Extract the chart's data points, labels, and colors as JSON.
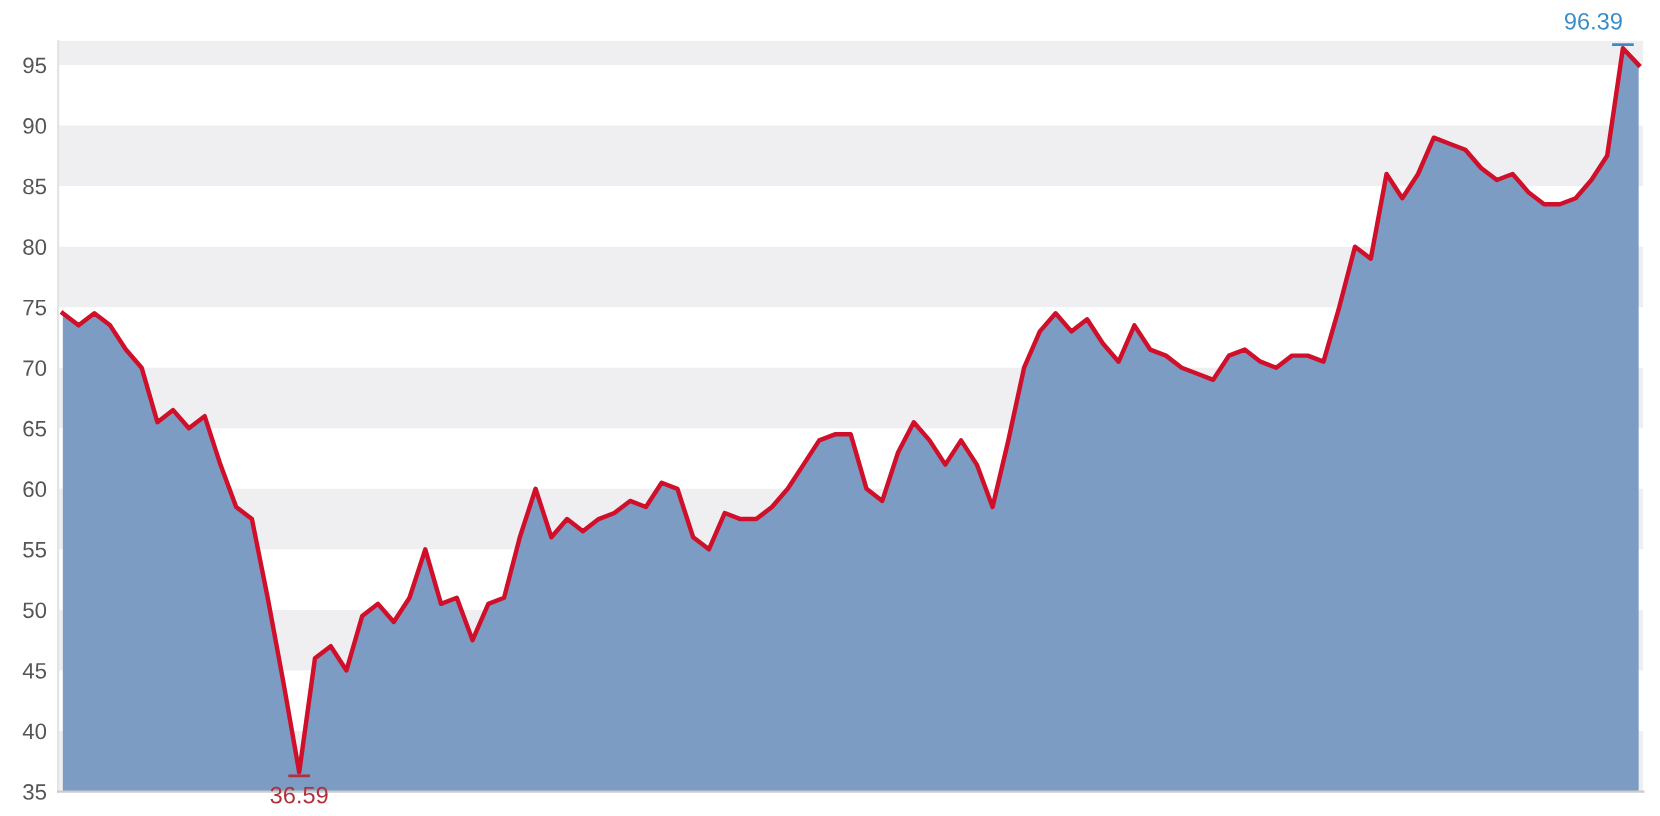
{
  "chart_data": {
    "type": "area",
    "categories": [
      null,
      null,
      null,
      null,
      null,
      null,
      null,
      null,
      null,
      null,
      null,
      null,
      null,
      null,
      null,
      null,
      null,
      null,
      null,
      null,
      null,
      null,
      null,
      null,
      null,
      null,
      null,
      null,
      null,
      null,
      null,
      null,
      null,
      null,
      null,
      null,
      null,
      null,
      null,
      null,
      null,
      null,
      null,
      null,
      null,
      null,
      null,
      null,
      null,
      null,
      null,
      null,
      null,
      null,
      null,
      null,
      null,
      null,
      null,
      null,
      null,
      null,
      null,
      null,
      null,
      null,
      null,
      null,
      null,
      null,
      null,
      null,
      null,
      null,
      null,
      null,
      null,
      null,
      null,
      null,
      null,
      null,
      null,
      null,
      null,
      null,
      null,
      null,
      null,
      null,
      null,
      null,
      null,
      null,
      null,
      null,
      null,
      null,
      null,
      null,
      null
    ],
    "series": [
      {
        "color": "#7d9cc4",
        "values": [
          74.5,
          73.5,
          74.5,
          73.5,
          71.5,
          70,
          65.5,
          66.5,
          65,
          66,
          62,
          58.5,
          57.5,
          51,
          44,
          36.59,
          46,
          47,
          45,
          49.5,
          50.5,
          49,
          51,
          55,
          50.5,
          51,
          47.5,
          50.5,
          51,
          56,
          60,
          56,
          57.5,
          56.5,
          57.5,
          58,
          59,
          58.5,
          60.5,
          60,
          56,
          55,
          58,
          57.5,
          57.5,
          58.5,
          60,
          62,
          64,
          64.5,
          64.5,
          60,
          59,
          63,
          65.5,
          64,
          62,
          64,
          62,
          58.5,
          64,
          70,
          73,
          74.5,
          73,
          74,
          72,
          70.5,
          73.5,
          71.5,
          71,
          70,
          69.5,
          69,
          71,
          71.5,
          70.5,
          70,
          71,
          71,
          70.5,
          75,
          80,
          79,
          86,
          84,
          86,
          89,
          88.5,
          88,
          86.5,
          85.5,
          86,
          84.5,
          83.5,
          83.5,
          84,
          85.5,
          87.5,
          96.39,
          95
        ]
      },
      {
        "type": "line",
        "color": "#d0102a",
        "values": [
          74.5,
          73.5,
          74.5,
          73.5,
          71.5,
          70,
          65.5,
          66.5,
          65,
          66,
          62,
          58.5,
          57.5,
          51,
          44,
          36.59,
          46,
          47,
          45,
          49.5,
          50.5,
          49,
          51,
          55,
          50.5,
          51,
          47.5,
          50.5,
          51,
          56,
          60,
          56,
          57.5,
          56.5,
          57.5,
          58,
          59,
          58.5,
          60.5,
          60,
          56,
          55,
          58,
          57.5,
          57.5,
          58.5,
          60,
          62,
          64,
          64.5,
          64.5,
          60,
          59,
          63,
          65.5,
          64,
          62,
          64,
          62,
          58.5,
          64,
          70,
          73,
          74.5,
          73,
          74,
          72,
          70.5,
          73.5,
          71.5,
          71,
          70,
          69.5,
          69,
          71,
          71.5,
          70.5,
          70,
          71,
          71,
          70.5,
          75,
          80,
          79,
          86,
          84,
          86,
          89,
          88.5,
          88,
          86.5,
          85.5,
          86,
          84.5,
          83.5,
          83.5,
          84,
          85.5,
          87.5,
          96.39,
          95
        ]
      }
    ],
    "ylim": [
      35,
      97
    ],
    "yticks": [
      35,
      40,
      45,
      50,
      55,
      60,
      65,
      70,
      75,
      80,
      85,
      90,
      95
    ],
    "bands": [
      {
        "axis": "y",
        "from": 35,
        "to": 40,
        "color": "#efeff1"
      },
      {
        "axis": "y",
        "from": 45,
        "to": 50,
        "color": "#efeff1"
      },
      {
        "axis": "y",
        "from": 55,
        "to": 60,
        "color": "#efeff1"
      },
      {
        "axis": "y",
        "from": 65,
        "to": 70,
        "color": "#efeff1"
      },
      {
        "axis": "y",
        "from": 75,
        "to": 80,
        "color": "#efeff1"
      },
      {
        "axis": "y",
        "from": 85,
        "to": 90,
        "color": "#efeff1"
      },
      {
        "axis": "y",
        "from": 95,
        "to": 97,
        "color": "#efeff1"
      }
    ],
    "annotations": [
      {
        "text": "36.59",
        "y": 36.59
      },
      {
        "text": "96.39",
        "y": 96.39
      }
    ]
  }
}
